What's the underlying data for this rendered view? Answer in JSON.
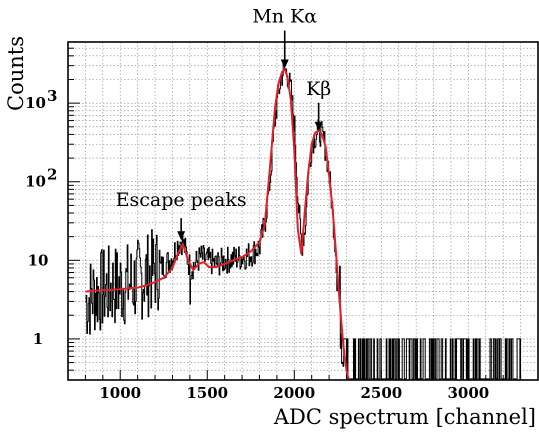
{
  "chart_data": {
    "type": "line",
    "xlabel": "ADC spectrum [channel]",
    "ylabel": "Counts",
    "xlim": [
      700,
      3400
    ],
    "ylim": [
      0.3,
      6000
    ],
    "yscale": "log",
    "grid": true,
    "x_ticks": [
      {
        "value": 1000,
        "label": "1000"
      },
      {
        "value": 1500,
        "label": "1500"
      },
      {
        "value": 2000,
        "label": "2000"
      },
      {
        "value": 2500,
        "label": "2500"
      },
      {
        "value": 3000,
        "label": "3000"
      }
    ],
    "y_ticks": [
      {
        "value": 1,
        "label": "1"
      },
      {
        "value": 10,
        "label": "10"
      },
      {
        "value": 100,
        "label": "10",
        "exp": "2"
      },
      {
        "value": 1000,
        "label": "10",
        "exp": "3"
      }
    ],
    "annotations": [
      {
        "text": "Mn Kα",
        "x": 1945,
        "y": 2600
      },
      {
        "text": "Kβ",
        "x": 2140,
        "y": 420
      },
      {
        "text": "Escape peaks",
        "x": 1350,
        "y": 17
      }
    ],
    "series": [
      {
        "kind": "histogram",
        "color": "#000000",
        "x": [
          800,
          850,
          900,
          950,
          1000,
          1050,
          1100,
          1150,
          1200,
          1250,
          1300,
          1320,
          1350,
          1370,
          1400,
          1430,
          1460,
          1500,
          1550,
          1600,
          1650,
          1700,
          1750,
          1800,
          1830,
          1860,
          1890,
          1920,
          1940,
          1960,
          1980,
          2000,
          2020,
          2040,
          2060,
          2080,
          2100,
          2130,
          2150,
          2170,
          2190,
          2210,
          2230,
          2250,
          2270,
          2290,
          2310,
          2330,
          2350,
          2400,
          2500,
          2600,
          2700,
          2800,
          2900,
          3000,
          3100,
          3200,
          3300
        ],
        "y": [
          3,
          3.8,
          4.2,
          4.6,
          4.8,
          5,
          5.5,
          6.5,
          7.5,
          8.5,
          11,
          15,
          18,
          14,
          8,
          9,
          11,
          10,
          9,
          10,
          10.5,
          11,
          12,
          15,
          30,
          110,
          700,
          2000,
          2800,
          2300,
          1400,
          500,
          60,
          15,
          25,
          120,
          320,
          430,
          420,
          330,
          180,
          70,
          20,
          5,
          1.5,
          0.8,
          0.6,
          0.6,
          0.7,
          0.6,
          0.6,
          0.6,
          0.6,
          0.6,
          0.6,
          0.6,
          0.6,
          0.6,
          0.6
        ]
      },
      {
        "kind": "fit",
        "color": "#e0202a",
        "x": [
          800,
          850,
          900,
          950,
          1000,
          1050,
          1100,
          1150,
          1200,
          1250,
          1300,
          1330,
          1360,
          1390,
          1420,
          1450,
          1480,
          1510,
          1550,
          1600,
          1650,
          1700,
          1750,
          1800,
          1830,
          1860,
          1890,
          1910,
          1930,
          1945,
          1960,
          1980,
          2000,
          2020,
          2040,
          2060,
          2080,
          2100,
          2120,
          2140,
          2160,
          2180,
          2200,
          2220,
          2240,
          2260,
          2280,
          2300,
          2320,
          2340,
          2360
        ],
        "y": [
          4,
          4.1,
          4.15,
          4.2,
          4.3,
          4.4,
          4.5,
          4.8,
          5.3,
          6,
          8,
          12,
          16,
          10,
          7.5,
          9,
          9.5,
          8.2,
          8.2,
          9,
          10,
          11,
          13,
          17,
          28,
          150,
          900,
          1800,
          2500,
          2700,
          2200,
          1100,
          250,
          25,
          12,
          40,
          130,
          300,
          420,
          450,
          400,
          280,
          120,
          45,
          12,
          3,
          0.9,
          0.4,
          0.25,
          0.2,
          0.2
        ]
      }
    ]
  }
}
